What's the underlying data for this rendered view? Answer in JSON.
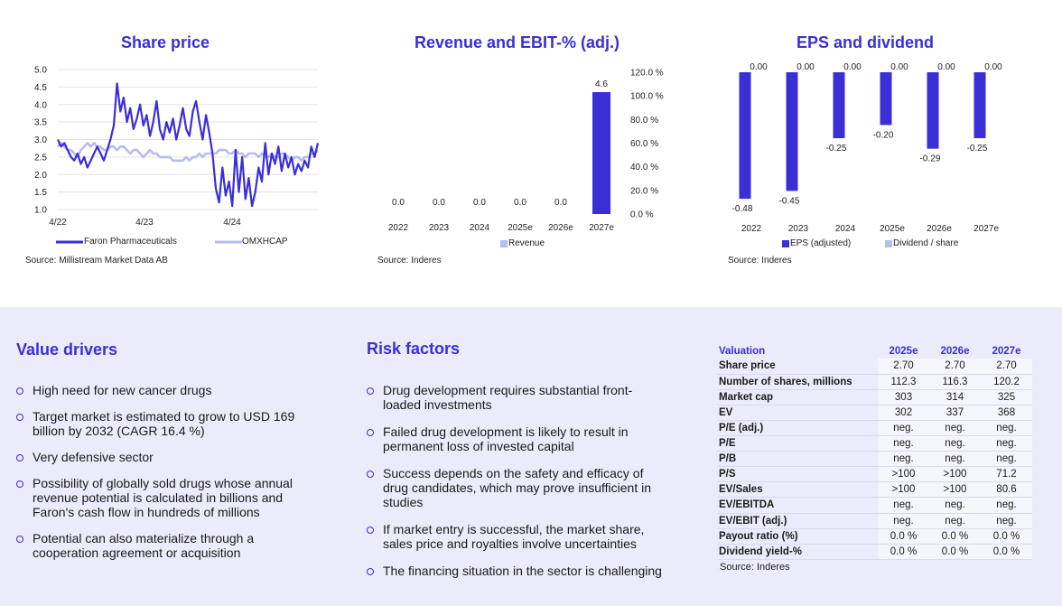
{
  "share_price": {
    "title": "Share price",
    "source": "Source: Millistream Market Data AB",
    "legend": [
      {
        "name": "Faron Pharmaceuticals",
        "color": "#3a2fd6"
      },
      {
        "name": "OMXHCAP",
        "color": "#b8bcef"
      }
    ]
  },
  "revenue": {
    "title": "Revenue and EBIT-% (adj.)",
    "source": "Source: Inderes",
    "legend": [
      {
        "name": "Revenue",
        "color": "#b8bcef"
      }
    ]
  },
  "eps": {
    "title": "EPS and dividend",
    "source": "Source: Inderes",
    "legend": [
      {
        "name": "EPS (adjusted)",
        "color": "#3a2fd6"
      },
      {
        "name": "Dividend / share",
        "color": "#b8bcef"
      }
    ]
  },
  "chart_data": [
    {
      "type": "line",
      "title": "Share price",
      "x_ticks": [
        "4/22",
        "4/23",
        "4/24"
      ],
      "ylim": [
        1.0,
        5.0
      ],
      "y_ticks": [
        "1.0",
        "1.5",
        "2.0",
        "2.5",
        "3.0",
        "3.5",
        "4.0",
        "4.5",
        "5.0"
      ],
      "series": [
        {
          "name": "Faron Pharmaceuticals",
          "values": [
            3.0,
            2.8,
            2.9,
            2.7,
            2.5,
            2.4,
            2.6,
            2.3,
            2.5,
            2.2,
            2.4,
            2.6,
            2.8,
            2.6,
            2.4,
            2.7,
            3.0,
            3.4,
            4.6,
            3.8,
            4.2,
            3.5,
            3.9,
            3.3,
            3.6,
            4.0,
            3.4,
            3.7,
            3.1,
            3.5,
            4.1,
            3.3,
            3.0,
            3.5,
            3.2,
            3.6,
            3.0,
            3.4,
            3.9,
            3.3,
            3.1,
            3.8,
            4.1,
            3.5,
            3.0,
            3.7,
            3.2,
            2.6,
            1.6,
            1.2,
            2.2,
            1.4,
            1.8,
            1.1,
            2.7,
            1.5,
            2.5,
            1.3,
            1.9,
            1.1,
            1.5,
            2.2,
            1.8,
            2.9,
            2.0,
            2.6,
            2.3,
            2.8,
            2.1,
            2.6,
            2.2,
            2.5,
            2.0,
            2.3,
            2.1,
            2.4,
            2.2,
            2.8,
            2.5,
            2.9
          ]
        },
        {
          "name": "OMXHCAP",
          "values": [
            2.8,
            2.9,
            2.8,
            2.7,
            2.7,
            2.6,
            2.5,
            2.7,
            2.8,
            2.9,
            2.8,
            2.9,
            2.8,
            2.8,
            2.7,
            2.7,
            2.8,
            2.8,
            2.7,
            2.8,
            2.8,
            2.7,
            2.6,
            2.7,
            2.7,
            2.6,
            2.5,
            2.6,
            2.7,
            2.6,
            2.6,
            2.5,
            2.5,
            2.5,
            2.5,
            2.4,
            2.4,
            2.4,
            2.4,
            2.5,
            2.4,
            2.5,
            2.5,
            2.6,
            2.5,
            2.6,
            2.6,
            2.6,
            2.6,
            2.7,
            2.7,
            2.7,
            2.6,
            2.6,
            2.7,
            2.6,
            2.6,
            2.5,
            2.6,
            2.6,
            2.6,
            2.5,
            2.6,
            2.5,
            2.5,
            2.6,
            2.5,
            2.5,
            2.6,
            2.6,
            2.5,
            2.4,
            2.5,
            2.5,
            2.4,
            2.5,
            2.5,
            2.6,
            2.6,
            2.7
          ]
        }
      ]
    },
    {
      "type": "bar",
      "title": "Revenue and EBIT-% (adj.)",
      "categories": [
        "2022",
        "2023",
        "2024",
        "2025e",
        "2026e",
        "2027e"
      ],
      "series": [
        {
          "name": "Revenue",
          "values": [
            0.0,
            0.0,
            0.0,
            0.0,
            0.0,
            4.6
          ]
        }
      ],
      "value_labels": [
        "0.0",
        "0.0",
        "0.0",
        "0.0",
        "0.0",
        "4.6"
      ],
      "y2_ticks": [
        "0.0 %",
        "20.0 %",
        "40.0 %",
        "60.0 %",
        "80.0 %",
        "100.0 %",
        "120.0 %"
      ],
      "ylim": [
        0,
        5.45
      ]
    },
    {
      "type": "bar",
      "title": "EPS and dividend",
      "categories": [
        "2022",
        "2023",
        "2024",
        "2025e",
        "2026e",
        "2027e"
      ],
      "series": [
        {
          "name": "EPS (adjusted)",
          "values": [
            -0.48,
            -0.45,
            -0.25,
            -0.2,
            -0.29,
            -0.25
          ],
          "labels": [
            "-0.48",
            "-0.45",
            "-0.25",
            "-0.20",
            "-0.29",
            "-0.25"
          ]
        },
        {
          "name": "Dividend / share",
          "values": [
            0.0,
            0.0,
            0.0,
            0.0,
            0.0,
            0.0
          ],
          "labels": [
            "0.00",
            "0.00",
            "0.00",
            "0.00",
            "0.00",
            "0.00"
          ]
        }
      ],
      "ylim": [
        -0.5,
        0
      ]
    }
  ],
  "value_drivers": {
    "title": "Value drivers",
    "items": [
      "High need for new cancer drugs",
      "Target market is estimated to grow to USD 169 billion by 2032 (CAGR 16.4 %)",
      "Very defensive sector",
      "Possibility of globally sold drugs whose annual revenue potential is calculated in billions and Faron's cash flow in hundreds of millions",
      "Potential can also materialize through a cooperation agreement or acquisition"
    ]
  },
  "risk_factors": {
    "title": "Risk factors",
    "items": [
      "Drug development requires substantial front-loaded investments",
      "Failed drug development is likely to result in permanent loss of invested capital",
      "Success depends on the safety and efficacy of drug candidates, which may prove insufficient in studies",
      "If market entry is successful, the market share, sales price and royalties involve uncertainties",
      "The financing situation in the sector is challenging"
    ]
  },
  "valuation": {
    "header": [
      "Valuation",
      "2025e",
      "2026e",
      "2027e"
    ],
    "rows": [
      [
        "Share price",
        "2.70",
        "2.70",
        "2.70"
      ],
      [
        "Number of shares, millions",
        "112.3",
        "116.3",
        "120.2"
      ],
      [
        "Market cap",
        "303",
        "314",
        "325"
      ],
      [
        "EV",
        "302",
        "337",
        "368"
      ],
      [
        "P/E (adj.)",
        "neg.",
        "neg.",
        "neg."
      ],
      [
        "P/E",
        "neg.",
        "neg.",
        "neg."
      ],
      [
        "P/B",
        "neg.",
        "neg.",
        "neg."
      ],
      [
        "P/S",
        ">100",
        ">100",
        "71.2"
      ],
      [
        "EV/Sales",
        ">100",
        ">100",
        "80.6"
      ],
      [
        "EV/EBITDA",
        "neg.",
        "neg.",
        "neg."
      ],
      [
        "EV/EBIT (adj.)",
        "neg.",
        "neg.",
        "neg."
      ],
      [
        "Payout ratio (%)",
        "0.0 %",
        "0.0 %",
        "0.0 %"
      ],
      [
        "Dividend yield-%",
        "0.0 %",
        "0.0 %",
        "0.0 %"
      ]
    ],
    "source": "Source: Inderes"
  }
}
